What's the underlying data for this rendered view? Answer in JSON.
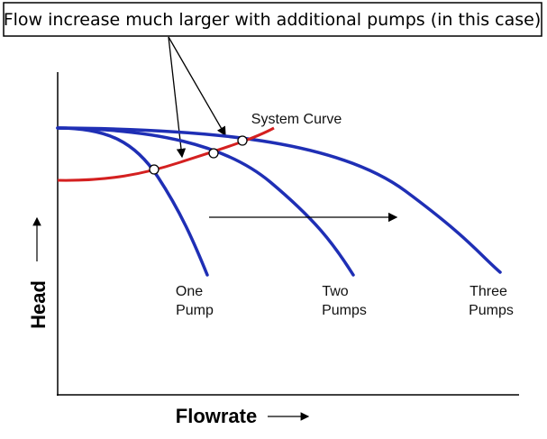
{
  "callout": "Flow increase much larger with additional pumps (in this case)",
  "system_curve": "System Curve",
  "pump_labels": [
    [
      "One",
      "Pump"
    ],
    [
      "Two",
      "Pumps"
    ],
    [
      "Three",
      "Pumps"
    ]
  ],
  "axes": {
    "y": "Head",
    "x": "Flowrate"
  }
}
